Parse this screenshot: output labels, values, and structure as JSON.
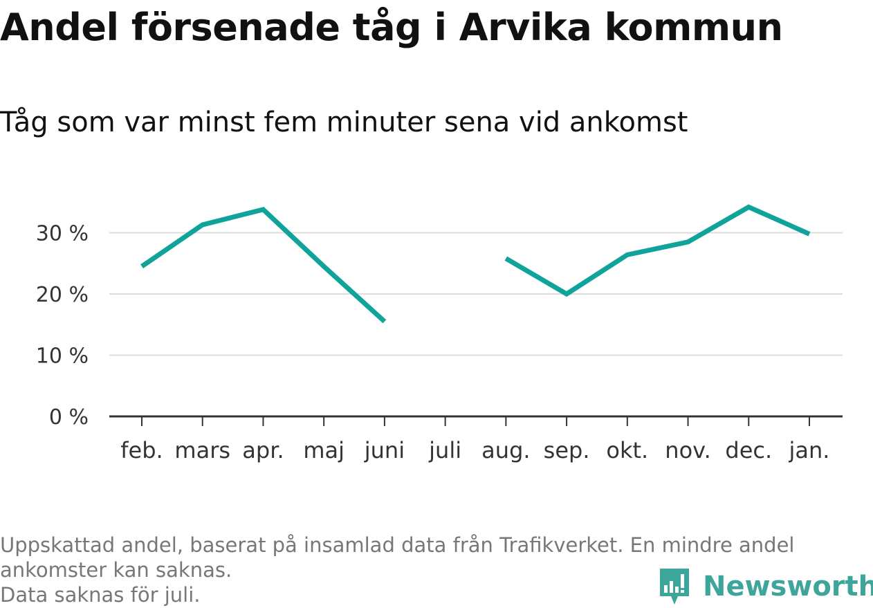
{
  "title": "Andel försenade tåg i Arvika kommun",
  "subtitle": "Tåg som var minst fem minuter sena vid ankomst",
  "chart_data": {
    "type": "line",
    "categories": [
      "feb.",
      "mars",
      "apr.",
      "maj",
      "juni",
      "juli",
      "aug.",
      "sep.",
      "okt.",
      "nov.",
      "dec.",
      "jan."
    ],
    "series": [
      {
        "values": [
          24.5,
          31.3,
          33.8,
          24.5,
          15.5,
          null,
          25.8,
          20.0,
          26.4,
          28.5,
          34.2,
          29.8
        ],
        "color": "#0fa39b"
      }
    ],
    "ylim": [
      0,
      35
    ],
    "yticks": [
      0,
      10,
      20,
      30
    ],
    "ytick_labels": [
      "0 %",
      "10 %",
      "20 %",
      "30 %"
    ],
    "grid": true,
    "xlabel": "",
    "ylabel": ""
  },
  "footnote": {
    "line1": "Uppskattad andel, baserat på insamlad data från Trafikverket. En mindre andel",
    "line2": "ankomster kan saknas.",
    "line3": "Data saknas för juli."
  },
  "logo": {
    "text": "Newsworthy",
    "color": "#3ea59b",
    "icon": "bar-chart-speech-bubble-icon"
  }
}
